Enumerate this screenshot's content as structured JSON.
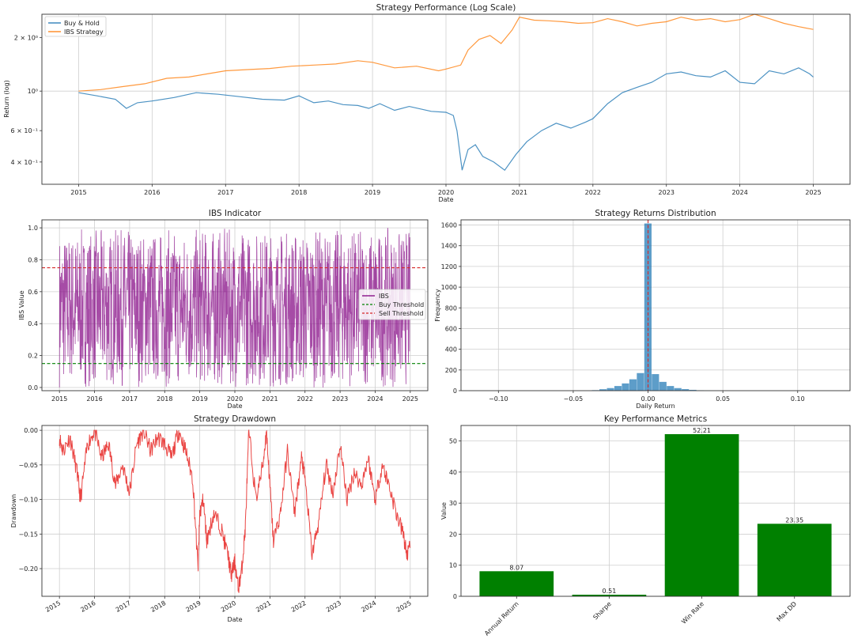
{
  "chart_data": [
    {
      "type": "line",
      "title": "Strategy Performance (Log Scale)",
      "xlabel": "Date",
      "ylabel": "Return (log)",
      "yscale": "log",
      "xlim": [
        2014.5,
        2025.5
      ],
      "ylim": [
        0.3,
        2.7
      ],
      "x_ticks": [
        "2015",
        "2016",
        "2017",
        "2018",
        "2019",
        "2020",
        "2021",
        "2022",
        "2023",
        "2024",
        "2025"
      ],
      "y_ticks": [
        {
          "v": 0.4,
          "label": "4 × 10⁻¹"
        },
        {
          "v": 0.6,
          "label": "6 × 10⁻¹"
        },
        {
          "v": 1.0,
          "label": "10⁰"
        },
        {
          "v": 2.0,
          "label": "2 × 10⁰"
        }
      ],
      "grid": true,
      "legend": "top-left",
      "series": [
        {
          "name": "Buy & Hold",
          "color": "#1f77b4",
          "x": [
            2015.0,
            2015.25,
            2015.5,
            2015.65,
            2015.8,
            2016.0,
            2016.3,
            2016.6,
            2016.9,
            2017.2,
            2017.5,
            2017.8,
            2018.0,
            2018.2,
            2018.4,
            2018.6,
            2018.8,
            2018.95,
            2019.1,
            2019.3,
            2019.5,
            2019.8,
            2020.0,
            2020.1,
            2020.15,
            2020.22,
            2020.3,
            2020.4,
            2020.5,
            2020.65,
            2020.8,
            2020.95,
            2021.1,
            2021.3,
            2021.5,
            2021.7,
            2021.9,
            2022.0,
            2022.2,
            2022.4,
            2022.6,
            2022.8,
            2023.0,
            2023.2,
            2023.4,
            2023.6,
            2023.8,
            2024.0,
            2024.2,
            2024.4,
            2024.6,
            2024.8,
            2024.95,
            2025.0
          ],
          "y": [
            0.98,
            0.94,
            0.9,
            0.8,
            0.86,
            0.88,
            0.92,
            0.98,
            0.96,
            0.93,
            0.9,
            0.89,
            0.94,
            0.86,
            0.88,
            0.84,
            0.83,
            0.8,
            0.85,
            0.78,
            0.82,
            0.77,
            0.76,
            0.73,
            0.6,
            0.36,
            0.47,
            0.5,
            0.43,
            0.4,
            0.36,
            0.44,
            0.52,
            0.6,
            0.66,
            0.62,
            0.67,
            0.7,
            0.85,
            0.98,
            1.05,
            1.12,
            1.25,
            1.28,
            1.22,
            1.2,
            1.3,
            1.12,
            1.1,
            1.3,
            1.25,
            1.35,
            1.25,
            1.2
          ]
        },
        {
          "name": "IBS Strategy",
          "color": "#ff7f0e",
          "x": [
            2015.0,
            2015.3,
            2015.6,
            2015.9,
            2016.2,
            2016.5,
            2016.8,
            2017.0,
            2017.3,
            2017.6,
            2017.9,
            2018.2,
            2018.5,
            2018.8,
            2019.0,
            2019.3,
            2019.6,
            2019.9,
            2020.0,
            2020.2,
            2020.3,
            2020.45,
            2020.6,
            2020.75,
            2020.9,
            2021.0,
            2021.2,
            2021.4,
            2021.6,
            2021.8,
            2022.0,
            2022.2,
            2022.4,
            2022.6,
            2022.8,
            2023.0,
            2023.2,
            2023.4,
            2023.6,
            2023.8,
            2024.0,
            2024.2,
            2024.4,
            2024.6,
            2024.8,
            2025.0
          ],
          "y": [
            1.0,
            1.02,
            1.06,
            1.1,
            1.18,
            1.2,
            1.26,
            1.3,
            1.32,
            1.34,
            1.38,
            1.4,
            1.42,
            1.48,
            1.45,
            1.35,
            1.38,
            1.3,
            1.33,
            1.4,
            1.7,
            1.95,
            2.05,
            1.85,
            2.2,
            2.6,
            2.5,
            2.48,
            2.45,
            2.4,
            2.42,
            2.55,
            2.45,
            2.32,
            2.4,
            2.45,
            2.6,
            2.5,
            2.55,
            2.45,
            2.52,
            2.7,
            2.55,
            2.4,
            2.3,
            2.22
          ]
        }
      ]
    },
    {
      "type": "line",
      "title": "IBS Indicator",
      "xlabel": "Date",
      "ylabel": "IBS Value",
      "xlim": [
        2014.5,
        2025.5
      ],
      "ylim": [
        -0.02,
        1.05
      ],
      "x_ticks": [
        "2015",
        "2016",
        "2017",
        "2018",
        "2019",
        "2020",
        "2021",
        "2022",
        "2023",
        "2024",
        "2025"
      ],
      "y_ticks": [
        "0.0",
        "0.2",
        "0.4",
        "0.6",
        "0.8",
        "1.0"
      ],
      "grid": true,
      "legend": "center-right",
      "series": [
        {
          "name": "IBS",
          "color": "#800080",
          "range": [
            0.0,
            1.0
          ]
        },
        {
          "name": "Buy Threshold",
          "color": "#008000",
          "value": 0.15
        },
        {
          "name": "Sell Threshold",
          "color": "#d62728",
          "value": 0.75
        }
      ]
    },
    {
      "type": "bar",
      "title": "Strategy Returns Distribution",
      "xlabel": "Daily Return",
      "ylabel": "Frequency",
      "xlim": [
        -0.125,
        0.135
      ],
      "ylim": [
        0,
        1650
      ],
      "x_ticks": [
        "−0.10",
        "−0.05",
        "0.00",
        "0.05",
        "0.10"
      ],
      "y_ticks": [
        "0",
        "200",
        "400",
        "600",
        "800",
        "1000",
        "1200",
        "1400",
        "1600"
      ],
      "grid": true,
      "bin_width": 0.005,
      "bins": [
        {
          "x": -0.035,
          "count": 5
        },
        {
          "x": -0.03,
          "count": 14
        },
        {
          "x": -0.025,
          "count": 25
        },
        {
          "x": -0.02,
          "count": 45
        },
        {
          "x": -0.015,
          "count": 70
        },
        {
          "x": -0.01,
          "count": 110
        },
        {
          "x": -0.005,
          "count": 170
        },
        {
          "x": 0.0,
          "count": 1615
        },
        {
          "x": 0.005,
          "count": 160
        },
        {
          "x": 0.01,
          "count": 85
        },
        {
          "x": 0.015,
          "count": 45
        },
        {
          "x": 0.02,
          "count": 25
        },
        {
          "x": 0.025,
          "count": 15
        },
        {
          "x": 0.03,
          "count": 8
        },
        {
          "x": 0.035,
          "count": 4
        },
        {
          "x": 0.04,
          "count": 2
        },
        {
          "x": 0.045,
          "count": 1
        }
      ],
      "vline": 0.0,
      "color": "#1f77b4"
    },
    {
      "type": "line",
      "title": "Strategy Drawdown",
      "xlabel": "Date",
      "ylabel": "Drawdown",
      "xlim": [
        2014.5,
        2025.5
      ],
      "ylim": [
        -0.24,
        0.007
      ],
      "x_ticks": [
        "2015",
        "2016",
        "2017",
        "2018",
        "2019",
        "2020",
        "2021",
        "2022",
        "2023",
        "2024",
        "2025"
      ],
      "y_ticks": [
        "0.00",
        "−0.05",
        "−0.10",
        "−0.15",
        "−0.20"
      ],
      "grid": true,
      "series": [
        {
          "name": "Drawdown",
          "color": "#e8312f",
          "x": [
            2015.0,
            2015.1,
            2015.3,
            2015.5,
            2015.6,
            2015.8,
            2016.0,
            2016.2,
            2016.4,
            2016.6,
            2016.8,
            2017.0,
            2017.2,
            2017.4,
            2017.6,
            2017.8,
            2018.0,
            2018.2,
            2018.4,
            2018.6,
            2018.8,
            2018.95,
            2019.0,
            2019.1,
            2019.2,
            2019.4,
            2019.6,
            2019.8,
            2019.9,
            2020.0,
            2020.1,
            2020.2,
            2020.3,
            2020.4,
            2020.6,
            2020.8,
            2020.9,
            2021.0,
            2021.1,
            2021.3,
            2021.5,
            2021.7,
            2021.9,
            2022.0,
            2022.2,
            2022.4,
            2022.6,
            2022.8,
            2023.0,
            2023.2,
            2023.4,
            2023.6,
            2023.8,
            2024.0,
            2024.2,
            2024.4,
            2024.6,
            2024.8,
            2024.9,
            2025.0
          ],
          "y": [
            -0.01,
            -0.03,
            -0.01,
            -0.06,
            -0.1,
            -0.02,
            0.0,
            -0.04,
            -0.02,
            -0.08,
            -0.05,
            -0.09,
            -0.02,
            0.0,
            -0.03,
            -0.01,
            -0.02,
            -0.04,
            0.0,
            -0.03,
            -0.07,
            -0.2,
            -0.12,
            -0.1,
            -0.16,
            -0.12,
            -0.14,
            -0.18,
            -0.21,
            -0.19,
            -0.23,
            -0.2,
            -0.14,
            0.0,
            -0.1,
            -0.05,
            0.0,
            -0.08,
            -0.16,
            -0.12,
            -0.03,
            -0.12,
            -0.04,
            -0.07,
            -0.18,
            -0.13,
            -0.05,
            -0.09,
            -0.02,
            -0.1,
            -0.06,
            -0.08,
            -0.04,
            -0.1,
            -0.05,
            -0.08,
            -0.12,
            -0.15,
            -0.18,
            -0.17
          ]
        }
      ]
    },
    {
      "type": "bar",
      "title": "Key Performance Metrics",
      "xlabel": "",
      "ylabel": "Value",
      "categories": [
        "Annual Return",
        "Sharpe",
        "Win Rate",
        "Max DD"
      ],
      "values": [
        8.07,
        0.51,
        52.21,
        23.35
      ],
      "value_labels": [
        "8.07",
        "0.51",
        "52.21",
        "23.35"
      ],
      "ylim": [
        0,
        55
      ],
      "y_ticks": [
        "0",
        "10",
        "20",
        "30",
        "40",
        "50"
      ],
      "grid": true,
      "color": "#008000"
    }
  ]
}
